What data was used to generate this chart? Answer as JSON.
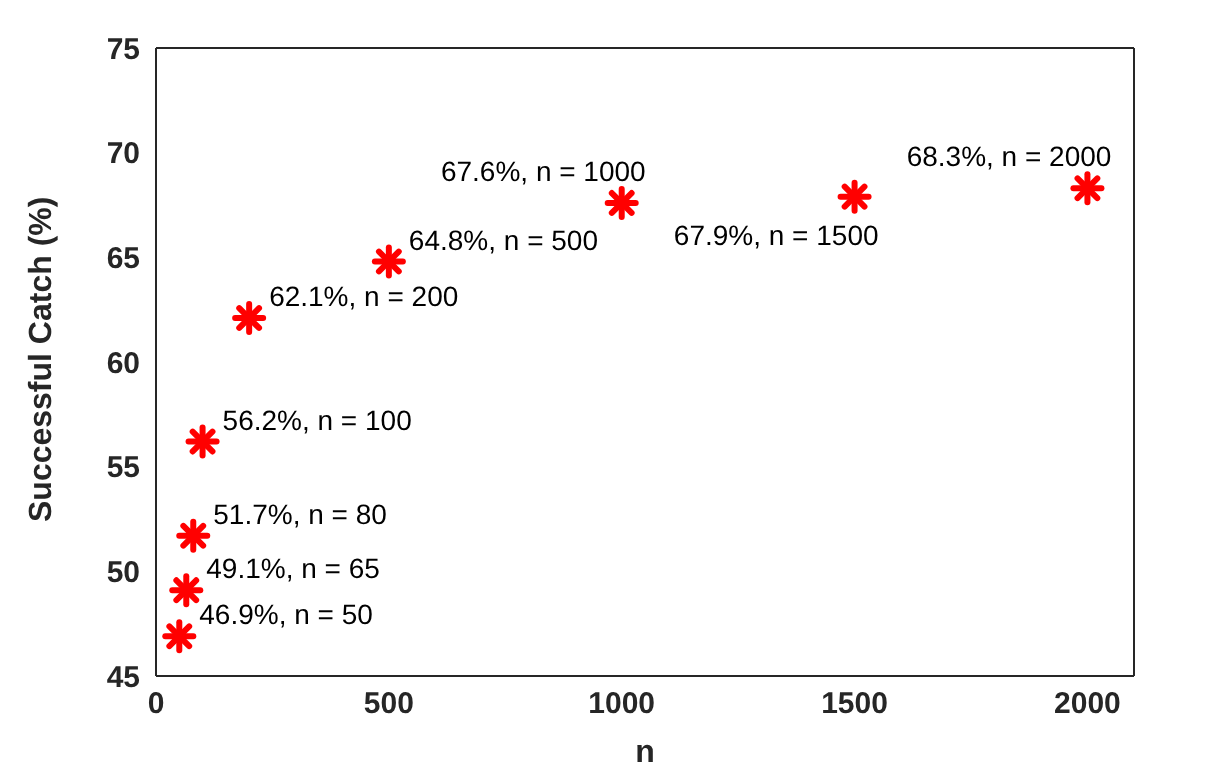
{
  "chart_data": {
    "type": "scatter",
    "xlabel": "n",
    "ylabel": "Successful Catch (%)",
    "x": [
      50,
      65,
      80,
      100,
      200,
      500,
      1000,
      1500,
      2000
    ],
    "values": [
      46.9,
      49.1,
      51.7,
      56.2,
      62.1,
      64.8,
      67.6,
      67.9,
      68.3
    ],
    "value_labels": [
      "46.9%, n = 50",
      "49.1%, n = 65",
      "51.7%, n = 80",
      "56.2%, n = 100",
      "62.1%, n = 200",
      "64.8%, n = 500",
      "67.6%, n = 1000",
      "67.9%, n = 1500",
      "68.3%, n = 2000"
    ],
    "color": "#ff0000",
    "marker": "cross",
    "grid": false,
    "legend": false,
    "xlim": [
      0,
      2100
    ],
    "xticks": [
      0,
      500,
      1000,
      1500,
      2000
    ],
    "ylim": [
      45,
      75
    ],
    "yticks": [
      45,
      50,
      55,
      60,
      65,
      70,
      75
    ]
  }
}
